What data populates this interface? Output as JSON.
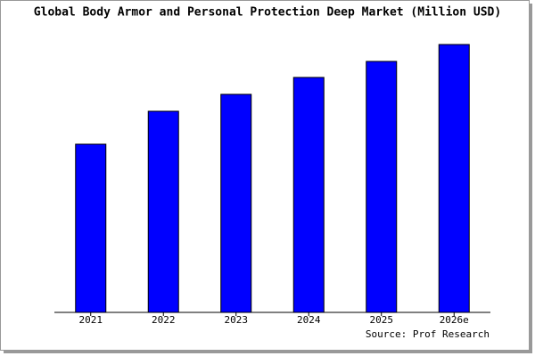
{
  "chart_data": {
    "type": "bar",
    "title": "Global Body Armor and Personal Protection Deep Market (Million USD)",
    "categories": [
      "2021",
      "2022",
      "2023",
      "2024",
      "2025",
      "2026e"
    ],
    "values": [
      189,
      226,
      245,
      264,
      282,
      301
    ],
    "color": "#0000ff",
    "ylim": [
      0,
      303
    ],
    "source": "Source: Prof Research"
  }
}
